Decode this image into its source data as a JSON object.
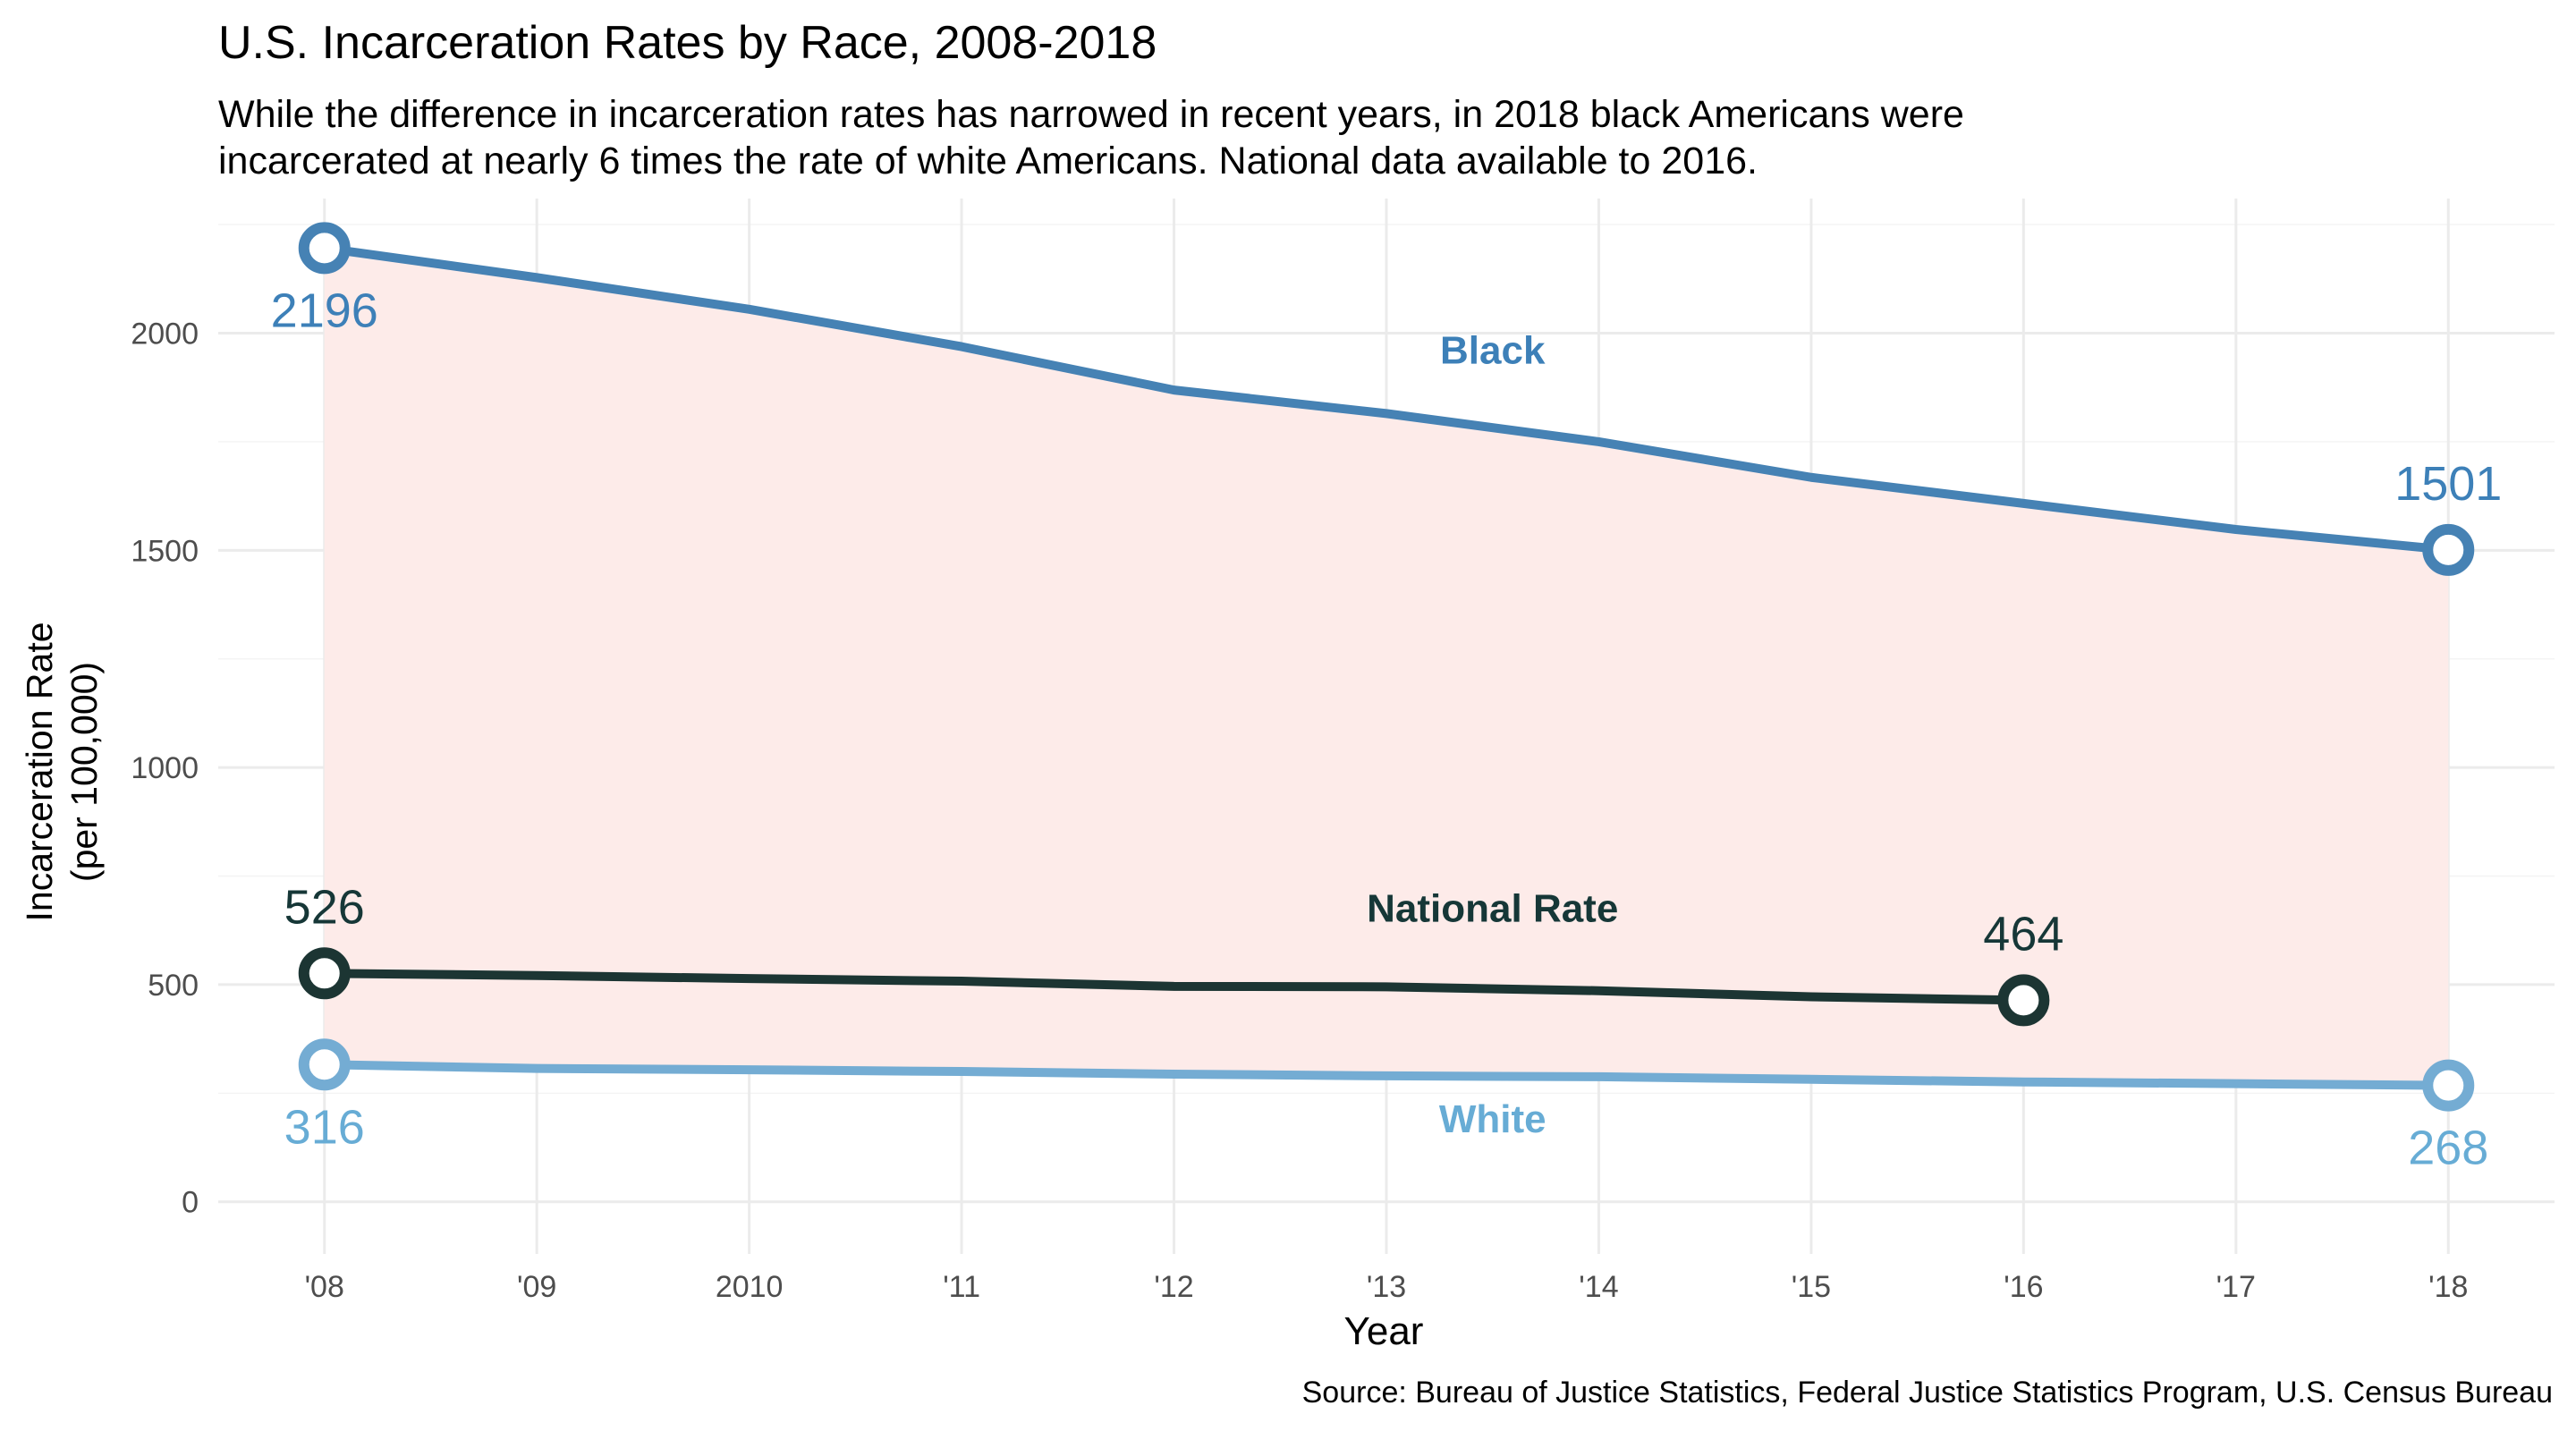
{
  "chart_data": {
    "type": "line",
    "title": "U.S. Incarceration Rates by Race, 2008-2018",
    "subtitle_lines": [
      "While the difference in incarceration rates has narrowed in recent years, in 2018 black Americans were",
      "incarcerated at nearly 6 times the rate of white Americans. National data available to 2016."
    ],
    "caption": "Source: Bureau of Justice Statistics, Federal Justice Statistics Program, U.S. Census Bureau",
    "xlabel": "Year",
    "ylabel_lines": [
      "Incarceration Rate",
      "(per 100,000)"
    ],
    "x_ticks": [
      {
        "value": 2008,
        "label": "'08"
      },
      {
        "value": 2009,
        "label": "'09"
      },
      {
        "value": 2010,
        "label": "2010"
      },
      {
        "value": 2011,
        "label": "'11"
      },
      {
        "value": 2012,
        "label": "'12"
      },
      {
        "value": 2013,
        "label": "'13"
      },
      {
        "value": 2014,
        "label": "'14"
      },
      {
        "value": 2015,
        "label": "'15"
      },
      {
        "value": 2016,
        "label": "'16"
      },
      {
        "value": 2017,
        "label": "'17"
      },
      {
        "value": 2018,
        "label": "'18"
      }
    ],
    "y_ticks": [
      0,
      500,
      1000,
      1500,
      2000
    ],
    "xlim": [
      2007.5,
      2018.5
    ],
    "ylim": [
      -120,
      2310
    ],
    "grid": true,
    "ribbon": {
      "lower": "White",
      "upper": "Black",
      "color": "#fdebe9"
    },
    "series": [
      {
        "name": "Black",
        "color": "#4682b4",
        "label_color": "#3d80b8",
        "label_at": {
          "x": 2013.5,
          "y": 1930
        },
        "x": [
          2008,
          2009,
          2010,
          2011,
          2012,
          2013,
          2014,
          2015,
          2016,
          2017,
          2018
        ],
        "values": [
          2196,
          2128,
          2055,
          1969,
          1869,
          1815,
          1750,
          1668,
          1608,
          1548,
          1501
        ],
        "endpoint_labels": [
          {
            "x": 2008,
            "text": "2196",
            "position": "below"
          },
          {
            "x": 2018,
            "text": "1501",
            "position": "above"
          }
        ]
      },
      {
        "name": "National Rate",
        "color": "#1c3533",
        "label_color": "#163737",
        "label_at": {
          "x": 2013.5,
          "y": 645
        },
        "x": [
          2008,
          2009,
          2010,
          2011,
          2012,
          2013,
          2014,
          2015,
          2016
        ],
        "values": [
          526,
          521,
          514,
          508,
          496,
          495,
          486,
          472,
          464
        ],
        "endpoint_labels": [
          {
            "x": 2008,
            "text": "526",
            "position": "above"
          },
          {
            "x": 2016,
            "text": "464",
            "position": "above"
          }
        ]
      },
      {
        "name": "White",
        "color": "#74acd3",
        "label_color": "#67acd5",
        "label_at": {
          "x": 2013.5,
          "y": 160
        },
        "x": [
          2008,
          2009,
          2010,
          2011,
          2012,
          2013,
          2014,
          2015,
          2016,
          2017,
          2018
        ],
        "values": [
          316,
          307,
          304,
          300,
          294,
          290,
          288,
          282,
          276,
          272,
          268
        ],
        "endpoint_labels": [
          {
            "x": 2008,
            "text": "316",
            "position": "below"
          },
          {
            "x": 2018,
            "text": "268",
            "position": "below"
          }
        ]
      }
    ]
  }
}
